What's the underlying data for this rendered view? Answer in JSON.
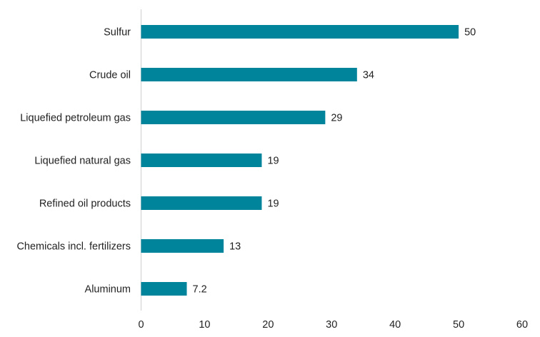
{
  "chart_data": {
    "type": "bar",
    "orientation": "horizontal",
    "categories": [
      "Sulfur",
      "Crude oil",
      "Liquefied petroleum gas",
      "Liquefied natural gas",
      "Refined oil products",
      "Chemicals incl. fertilizers",
      "Aluminum"
    ],
    "values": [
      50,
      34,
      29,
      19,
      19,
      13,
      7.2
    ],
    "value_labels": [
      "50",
      "34",
      "29",
      "19",
      "19",
      "13",
      "7.2"
    ],
    "x_ticks": [
      "0",
      "10",
      "20",
      "30",
      "40",
      "50",
      "60"
    ],
    "xlim": [
      0,
      60
    ],
    "bar_color": "#00849c",
    "axis_color": "#d0d0d0",
    "grid": false,
    "legend": "none"
  }
}
